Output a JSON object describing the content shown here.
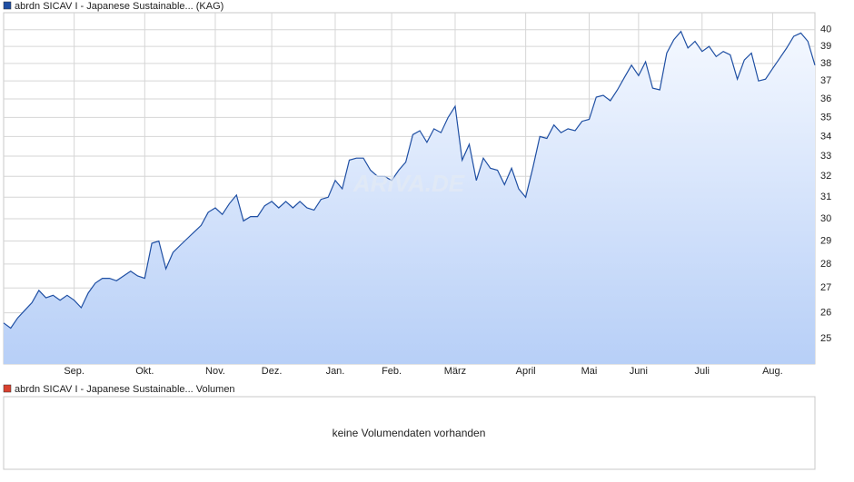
{
  "chart_data": {
    "type": "line",
    "watermark": "ARIVA.DE",
    "series": [
      {
        "name": "abrdn SICAV I - Japanese Sustainable... (KAG)",
        "color": "#1f4fa3",
        "values": [
          25.6,
          25.4,
          25.8,
          26.1,
          26.4,
          26.9,
          26.6,
          26.7,
          26.5,
          26.7,
          26.5,
          26.2,
          26.8,
          27.2,
          27.4,
          27.4,
          27.3,
          27.5,
          27.7,
          27.5,
          27.4,
          28.9,
          29.0,
          27.8,
          28.5,
          28.8,
          29.1,
          29.4,
          29.7,
          30.3,
          30.5,
          30.2,
          30.7,
          31.1,
          29.9,
          30.1,
          30.1,
          30.6,
          30.8,
          30.5,
          30.8,
          30.5,
          30.8,
          30.5,
          30.4,
          30.9,
          31.0,
          31.8,
          31.4,
          32.8,
          32.9,
          32.9,
          32.3,
          32.0,
          32.0,
          31.8,
          32.3,
          32.7,
          34.1,
          34.3,
          33.7,
          34.4,
          34.2,
          35.0,
          35.6,
          32.8,
          33.6,
          31.8,
          32.9,
          32.4,
          32.3,
          31.6,
          32.4,
          31.4,
          31.0,
          32.4,
          34.0,
          33.9,
          34.6,
          34.2,
          34.4,
          34.3,
          34.8,
          34.9,
          36.1,
          36.2,
          35.9,
          36.5,
          37.2,
          37.9,
          37.3,
          38.1,
          36.6,
          36.5,
          38.6,
          39.4,
          39.9,
          38.9,
          39.3,
          38.7,
          39.0,
          38.4,
          38.7,
          38.5,
          37.1,
          38.2,
          38.6,
          37.0,
          37.1,
          37.7,
          38.3,
          38.9,
          39.6,
          39.8,
          39.3,
          37.9
        ]
      }
    ],
    "xlim": [
      0,
      115
    ],
    "xticks": [
      {
        "value": 10,
        "label": "Sep."
      },
      {
        "value": 20,
        "label": "Okt."
      },
      {
        "value": 30,
        "label": "Nov."
      },
      {
        "value": 38,
        "label": "Dez."
      },
      {
        "value": 47,
        "label": "Jan."
      },
      {
        "value": 55,
        "label": "Feb."
      },
      {
        "value": 64,
        "label": "März"
      },
      {
        "value": 74,
        "label": "April"
      },
      {
        "value": 83,
        "label": "Mai"
      },
      {
        "value": 90,
        "label": "Juni"
      },
      {
        "value": 99,
        "label": "Juli"
      },
      {
        "value": 109,
        "label": "Aug."
      }
    ],
    "ylim": [
      24.05,
      41.05
    ],
    "log_y": true,
    "yticks": [
      25,
      26,
      27,
      28,
      29,
      30,
      31,
      32,
      33,
      34,
      35,
      36,
      37,
      38,
      39,
      40
    ],
    "grid": true,
    "volume": {
      "name": "abrdn SICAV I - Japanese Sustainable... Volumen",
      "color": "#d9412f",
      "message": "keine Volumendaten vorhanden"
    }
  }
}
